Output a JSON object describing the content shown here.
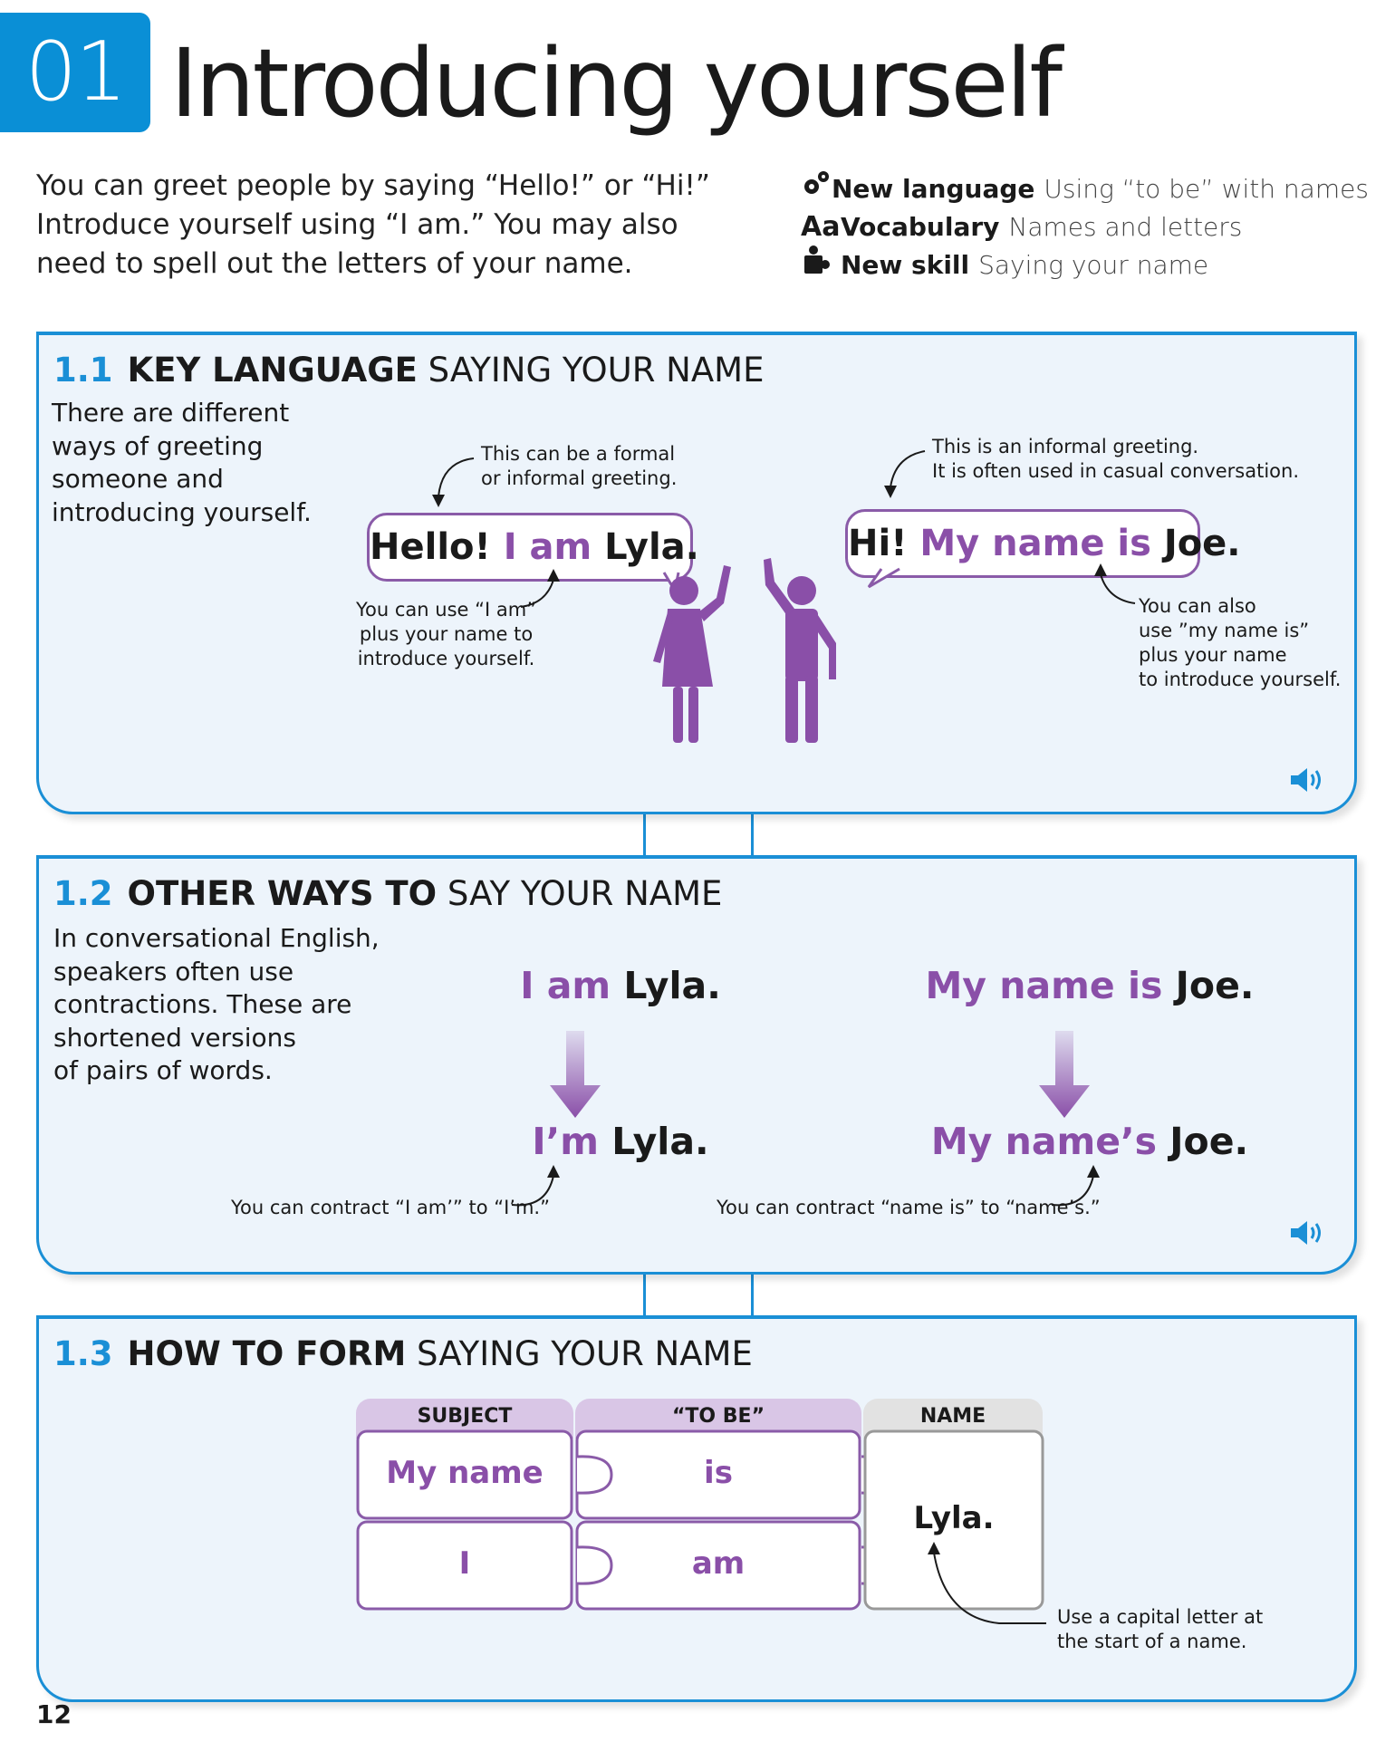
{
  "header": {
    "number": "01",
    "title": "Introducing yourself"
  },
  "intro": {
    "lines": [
      "You can greet people by saying “Hello!” or “Hi!”",
      "Introduce yourself using “I am.” You may also",
      "need to spell out the letters of your name."
    ]
  },
  "meta": [
    {
      "icon": "gears-icon",
      "label": "New language",
      "value": "Using “to be” with names"
    },
    {
      "icon": "aa-icon",
      "icon_text": "Aa",
      "label": "Vocabulary",
      "value": "Names and letters"
    },
    {
      "icon": "puzzle-person-icon",
      "label": "New skill",
      "value": "Saying your name"
    }
  ],
  "section1": {
    "num": "1.1",
    "bold": "KEY LANGUAGE",
    "rest": "SAYING YOUR NAME",
    "body": [
      "There are different",
      "ways of greeting",
      "someone and",
      "introducing yourself."
    ],
    "bubble_left": {
      "p1": "Hello! ",
      "p2": "I am",
      "p3": " Lyla."
    },
    "bubble_right": {
      "p1": "Hi! ",
      "p2": "My name is",
      "p3": " Joe."
    },
    "note_top_left": [
      "This can be a formal",
      "or informal greeting."
    ],
    "note_top_right": [
      "This is an informal greeting.",
      "It is often used in casual conversation."
    ],
    "note_bottom_left": [
      "You can use “I am”",
      "plus your name to",
      "introduce yourself."
    ],
    "note_bottom_right": [
      "You can also",
      "use ”my name is”",
      "plus your name",
      "to introduce yourself."
    ]
  },
  "section2": {
    "num": "1.2",
    "bold": "OTHER WAYS TO",
    "rest": "SAY YOUR NAME",
    "body": [
      "In conversational English,",
      "speakers often use",
      "contractions. These are",
      "shortened versions",
      "of pairs of words."
    ],
    "left_top": {
      "p1": "I am",
      "p2": " Lyla."
    },
    "left_bottom": {
      "p1": "I’m",
      "p2": " Lyla."
    },
    "right_top": {
      "p1": "My name is",
      "p2": " Joe."
    },
    "right_bottom": {
      "p1": "My name’s",
      "p2": " Joe."
    },
    "note_left": "You can contract “I am’” to “I’m.”",
    "note_right": "You can contract “name is” to “name’s.”"
  },
  "section3": {
    "num": "1.3",
    "bold": "HOW TO FORM",
    "rest": "SAYING YOUR NAME",
    "headers": [
      "SUBJECT",
      "“TO BE”",
      "NAME"
    ],
    "rows": [
      {
        "subject": "My name",
        "verb": "is"
      },
      {
        "subject": "I",
        "verb": "am"
      }
    ],
    "name": "Lyla.",
    "note": [
      "Use a capital letter at",
      "the start of a name."
    ]
  },
  "colors": {
    "accent": "#1a8fd6",
    "purple": "#8a4fa8",
    "panel": "#edf4fb"
  },
  "page_number": "12"
}
